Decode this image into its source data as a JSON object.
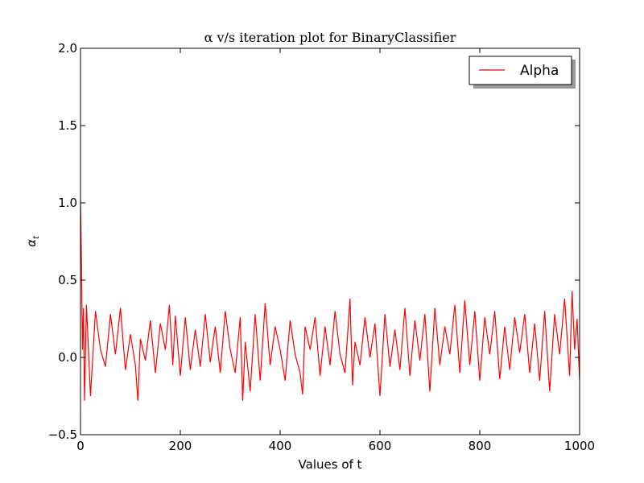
{
  "chart_data": {
    "type": "line",
    "title": "α v/s iteration plot for BinaryClassifier",
    "xlabel": "Values of t",
    "ylabel": "α",
    "ylabel_subscript": "t",
    "xlim": [
      0,
      1000
    ],
    "ylim": [
      -0.5,
      2.0
    ],
    "xticks": [
      "0",
      "200",
      "400",
      "600",
      "800",
      "1000"
    ],
    "yticks": [
      "−0.5",
      "0.0",
      "0.5",
      "1.0",
      "1.5",
      "2.0"
    ],
    "grid": false,
    "legend_placement": "top-right",
    "line_color": "#ff0000",
    "series": [
      {
        "name": "Alpha",
        "x": [
          0,
          2,
          4,
          6,
          8,
          12,
          20,
          30,
          40,
          50,
          60,
          70,
          80,
          90,
          100,
          110,
          115,
          120,
          130,
          140,
          150,
          160,
          170,
          178,
          185,
          190,
          200,
          210,
          220,
          230,
          240,
          250,
          260,
          270,
          280,
          290,
          300,
          310,
          320,
          325,
          330,
          340,
          350,
          360,
          370,
          380,
          390,
          400,
          410,
          420,
          430,
          440,
          445,
          450,
          460,
          470,
          480,
          490,
          500,
          510,
          520,
          530,
          540,
          545,
          550,
          560,
          570,
          580,
          590,
          600,
          610,
          620,
          630,
          640,
          650,
          660,
          670,
          680,
          690,
          700,
          710,
          720,
          730,
          740,
          750,
          760,
          770,
          780,
          790,
          800,
          810,
          820,
          830,
          840,
          850,
          860,
          870,
          880,
          890,
          900,
          910,
          920,
          930,
          940,
          950,
          960,
          970,
          980,
          985,
          990,
          995,
          1000
        ],
        "y": [
          1.02,
          0.62,
          0.05,
          0.32,
          -0.28,
          0.34,
          -0.25,
          0.3,
          0.05,
          -0.06,
          0.28,
          0.02,
          0.32,
          -0.08,
          0.15,
          -0.05,
          -0.28,
          0.12,
          -0.02,
          0.24,
          -0.1,
          0.22,
          0.05,
          0.34,
          -0.05,
          0.27,
          -0.12,
          0.26,
          -0.08,
          0.18,
          -0.06,
          0.28,
          -0.03,
          0.2,
          -0.1,
          0.3,
          0.05,
          -0.1,
          0.26,
          -0.28,
          0.1,
          -0.22,
          0.28,
          -0.15,
          0.35,
          -0.05,
          0.2,
          0.05,
          -0.15,
          0.24,
          0.02,
          -0.1,
          -0.24,
          0.2,
          0.05,
          0.26,
          -0.12,
          0.2,
          -0.05,
          0.3,
          0.02,
          -0.1,
          0.38,
          -0.18,
          0.1,
          -0.05,
          0.26,
          0.0,
          0.22,
          -0.25,
          0.28,
          -0.06,
          0.18,
          -0.08,
          0.32,
          -0.12,
          0.24,
          -0.02,
          0.28,
          -0.22,
          0.32,
          -0.05,
          0.2,
          0.02,
          0.34,
          -0.1,
          0.37,
          -0.05,
          0.3,
          -0.15,
          0.26,
          0.02,
          0.3,
          -0.14,
          0.2,
          -0.08,
          0.26,
          0.03,
          0.28,
          -0.1,
          0.22,
          -0.15,
          0.3,
          -0.22,
          0.28,
          0.02,
          0.38,
          -0.12,
          0.43,
          0.05,
          0.25,
          -0.15
        ]
      }
    ]
  }
}
